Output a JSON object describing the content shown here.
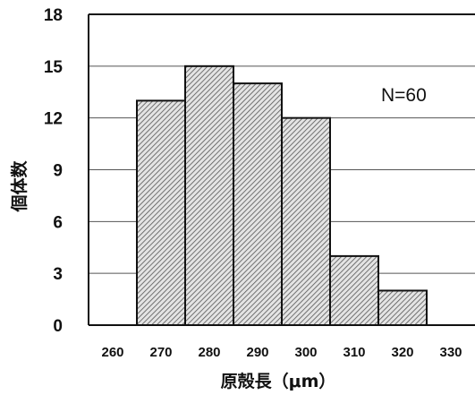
{
  "chart_data": {
    "type": "bar",
    "subtype": "histogram",
    "title": "",
    "xlabel": "原殻長（μm）",
    "ylabel": "個体数",
    "x_ticks": [
      "260",
      "270",
      "280",
      "290",
      "300",
      "310",
      "320",
      "330"
    ],
    "y_ticks": [
      "0",
      "3",
      "6",
      "9",
      "12",
      "15",
      "18"
    ],
    "ylim": [
      0,
      18
    ],
    "xlim": [
      255,
      335
    ],
    "bins": [
      {
        "from": 265,
        "to": 275,
        "value": 13
      },
      {
        "from": 275,
        "to": 285,
        "value": 15
      },
      {
        "from": 285,
        "to": 295,
        "value": 14
      },
      {
        "from": 295,
        "to": 305,
        "value": 12
      },
      {
        "from": 305,
        "to": 315,
        "value": 4
      },
      {
        "from": 315,
        "to": 325,
        "value": 2
      }
    ],
    "annotation": "N=60",
    "grid": {
      "horizontal": true,
      "vertical": false
    },
    "bar_fill": "hatched",
    "colors": {
      "bar_hatch": "#555555",
      "bar_background": "#e4e4e4",
      "bar_edge": "#111111",
      "grid": "#555555",
      "frame": "#111111"
    }
  }
}
